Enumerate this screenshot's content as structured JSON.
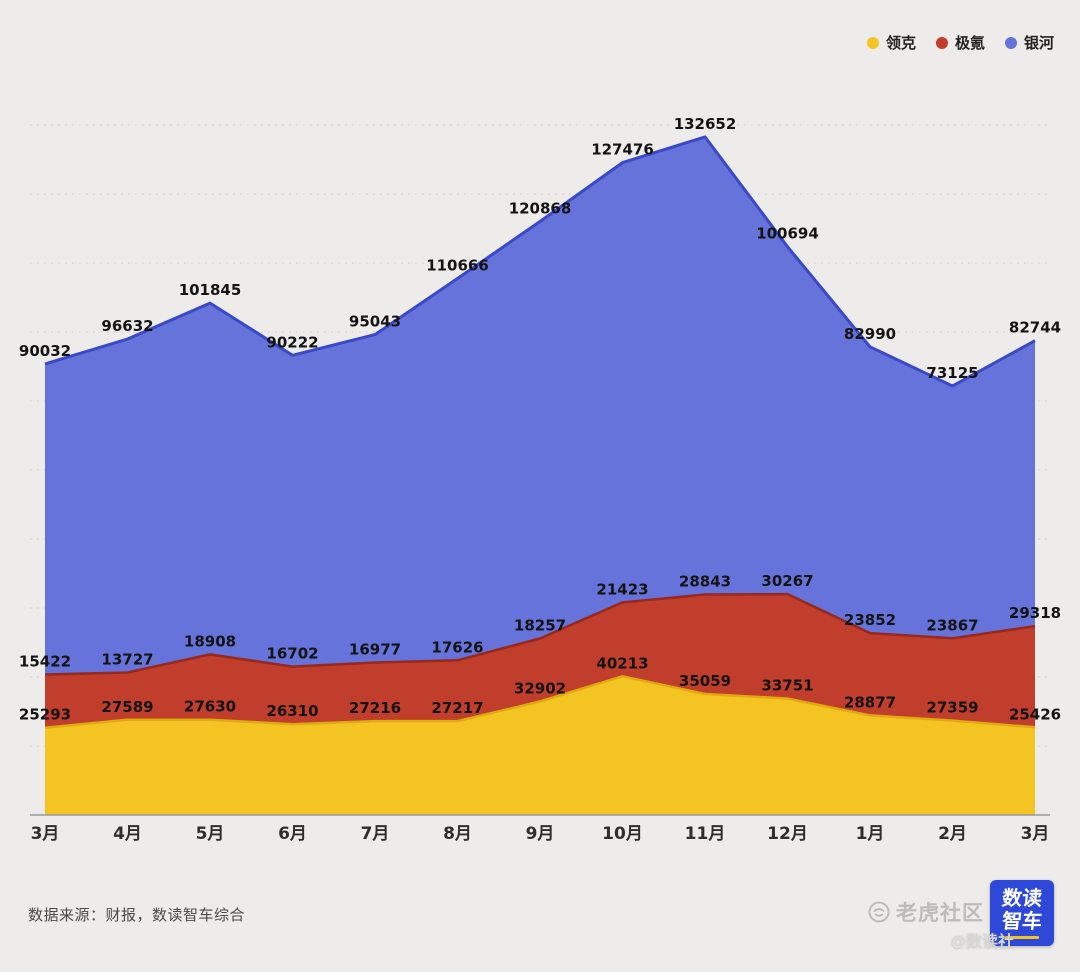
{
  "chart_data": {
    "type": "area",
    "stacked": true,
    "title": "",
    "xlabel": "",
    "ylabel": "",
    "ylim": [
      0,
      200000
    ],
    "grid_step": 20000,
    "grid": "dotted",
    "legend_position": "top-right",
    "categories": [
      "3月",
      "4月",
      "5月",
      "6月",
      "7月",
      "8月",
      "9月",
      "10月",
      "11月",
      "12月",
      "1月",
      "2月",
      "3月"
    ],
    "series": [
      {
        "name": "领克",
        "color": "#F4C522",
        "stroke": "#E0AB12",
        "values": [
          25293,
          27589,
          27630,
          26310,
          27216,
          27217,
          32902,
          40213,
          35059,
          33751,
          28877,
          27359,
          25426
        ]
      },
      {
        "name": "极氪",
        "color": "#C13E2C",
        "stroke": "#97291C",
        "values": [
          15422,
          13727,
          18908,
          16702,
          16977,
          17626,
          18257,
          21423,
          28843,
          30267,
          23852,
          23867,
          29318
        ]
      },
      {
        "name": "银河",
        "color": "#6673DA",
        "stroke": "#3A49C6",
        "values": [
          90032,
          96632,
          101845,
          90222,
          95043,
          110666,
          120868,
          127476,
          132652,
          100694,
          82990,
          73125,
          82744
        ]
      }
    ]
  },
  "footer": {
    "source": "数据来源：财报，数读智车综合"
  },
  "watermark": {
    "community": "老虎社区",
    "handle": "@数读社",
    "logo_line1": "数读",
    "logo_line2": "智车"
  },
  "colors": {
    "background": "#EDECEA",
    "gridline": "#CFCFCF",
    "axis": "#9A9A9A",
    "label": "#141414"
  }
}
